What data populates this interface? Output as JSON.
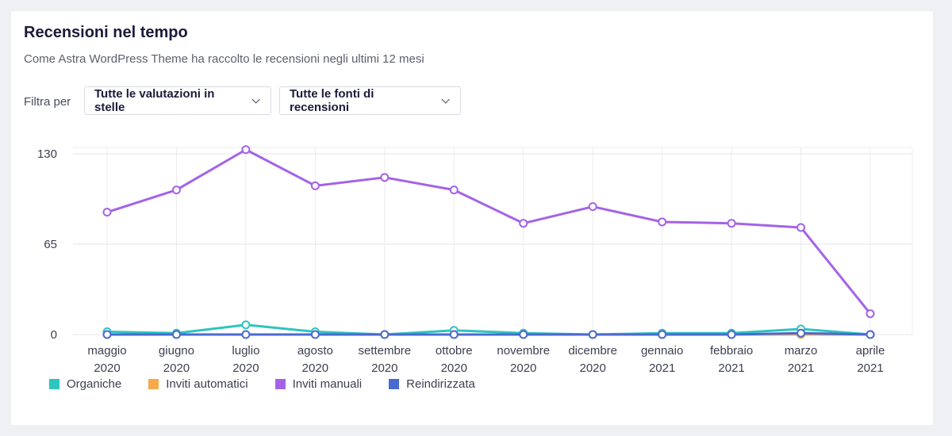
{
  "header": {
    "title": "Recensioni nel tempo",
    "subtitle": "Come Astra WordPress Theme ha raccolto le recensioni negli ultimi 12 mesi"
  },
  "filters": {
    "label": "Filtra per",
    "stars_value": "Tutte le valutazioni in stelle",
    "sources_value": "Tutte le fonti di recensioni"
  },
  "chart_data": {
    "type": "line",
    "categories": [
      [
        "maggio",
        "2020"
      ],
      [
        "giugno",
        "2020"
      ],
      [
        "luglio",
        "2020"
      ],
      [
        "agosto",
        "2020"
      ],
      [
        "settembre",
        "2020"
      ],
      [
        "ottobre",
        "2020"
      ],
      [
        "novembre",
        "2020"
      ],
      [
        "dicembre",
        "2020"
      ],
      [
        "gennaio",
        "2021"
      ],
      [
        "febbraio",
        "2021"
      ],
      [
        "marzo",
        "2021"
      ],
      [
        "aprile",
        "2021"
      ]
    ],
    "ylim": [
      0,
      130
    ],
    "yticks": [
      0,
      65,
      130
    ],
    "grid": true,
    "legend": "bottom-left",
    "series": [
      {
        "name": "Organiche",
        "color": "#2ec4c0",
        "values": [
          2,
          1,
          7,
          2,
          0,
          3,
          1,
          0,
          1,
          1,
          4,
          0
        ]
      },
      {
        "name": "Inviti automatici",
        "color": "#f5a94a",
        "values": [
          0,
          0,
          0,
          0,
          0,
          0,
          0,
          0,
          0,
          0,
          0,
          0
        ]
      },
      {
        "name": "Inviti manuali",
        "color": "#a463e6",
        "values": [
          88,
          104,
          133,
          107,
          113,
          104,
          80,
          92,
          81,
          80,
          77,
          15
        ]
      },
      {
        "name": "Reindirizzata",
        "color": "#4a6ad1",
        "values": [
          0,
          0,
          0,
          0,
          0,
          0,
          0,
          0,
          0,
          0,
          1,
          0
        ]
      }
    ]
  }
}
